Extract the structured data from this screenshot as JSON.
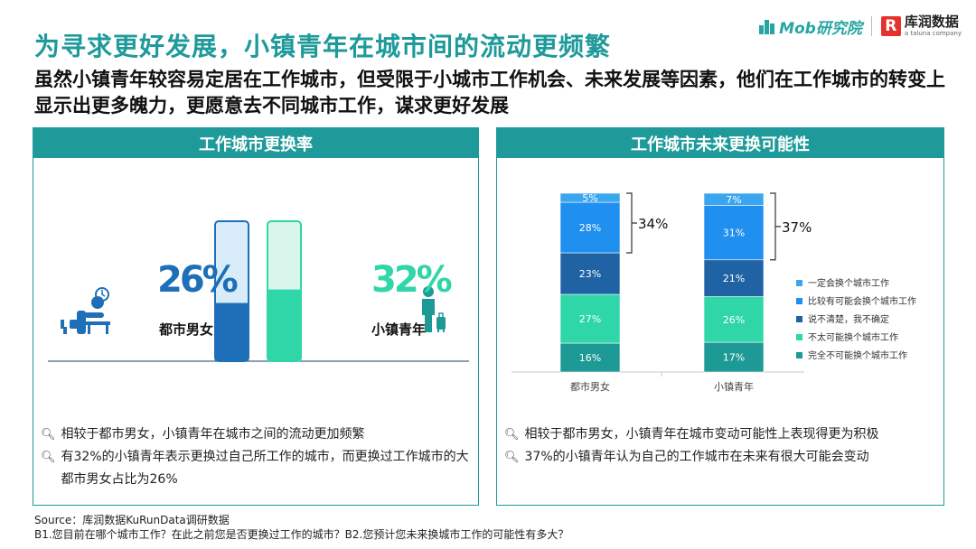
{
  "header": {
    "title": "为寻求更好发展，小镇青年在城市间的流动更频繁",
    "subtitle": "虽然小镇青年较容易定居在工作城市，但受限于小城市工作机会、未来发展等因素，他们在工作城市的转变上显示出更多魄力，更愿意去不同城市工作，谋求更好发展"
  },
  "logos": {
    "mob": "Mob研究院",
    "kurun": "库润数据",
    "kurun_sub": "a taluna company"
  },
  "left_panel": {
    "title": "工作城市更换率",
    "notes": [
      "相较于都市男女，小镇青年在城市之间的流动更加频繁",
      "有32%的小镇青年表示更换过自己所工作的城市，而更换过工作城市的大都市男女占比为26%"
    ]
  },
  "right_panel": {
    "title": "工作城市未来更换可能性",
    "notes": [
      "相较于都市男女，小镇青年在城市变动可能性上表现得更为积极",
      "37%的小镇青年认为自己的工作城市在未来有很大可能会变动"
    ]
  },
  "source": {
    "line1": "Source：库润数据KuRunData调研数据",
    "line2": "B1.您目前在哪个城市工作？在此之前您是否更换过工作的城市？B2.您预计您未来换城市工作的可能性有多大？"
  },
  "chart_data": [
    {
      "type": "bar",
      "title": "工作城市更换率",
      "categories": [
        "都市男女",
        "小镇青年"
      ],
      "values": [
        26,
        32
      ],
      "value_labels": [
        "26%",
        "32%"
      ],
      "ylim": [
        0,
        100
      ],
      "colors": {
        "urban": "#1d6fb8",
        "urban_light": "#d9ecfa",
        "town": "#2fd6a7",
        "town_light": "#d8f6ec"
      }
    },
    {
      "type": "bar",
      "stacked": true,
      "title": "工作城市未来更换可能性",
      "categories": [
        "都市男女",
        "小镇青年"
      ],
      "series": [
        {
          "name": "完全不可能换个城市工作",
          "values": [
            16,
            17
          ],
          "color": "#1e9a96"
        },
        {
          "name": "不太可能换个城市工作",
          "values": [
            27,
            26
          ],
          "color": "#2fd6a7"
        },
        {
          "name": "说不清楚，我不确定",
          "values": [
            23,
            21
          ],
          "color": "#1f63a5"
        },
        {
          "name": "比较有可能会换个城市工作",
          "values": [
            28,
            31
          ],
          "color": "#1f8ff0"
        },
        {
          "name": "一定会换个城市工作",
          "values": [
            5,
            7
          ],
          "color": "#3aa6ef"
        }
      ],
      "brackets": [
        "34%",
        "37%"
      ],
      "ylim": [
        0,
        100
      ],
      "legend": "right"
    }
  ]
}
